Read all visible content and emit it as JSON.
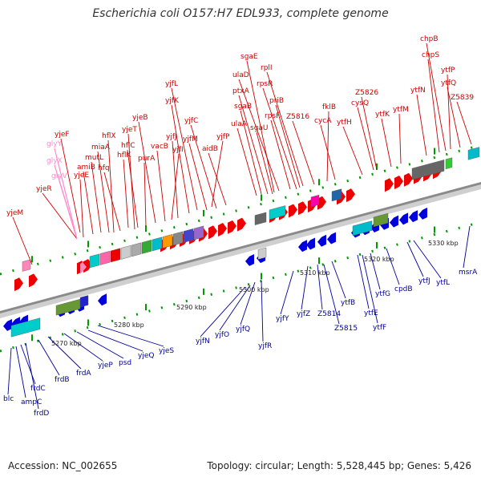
{
  "header": {
    "title": "Escherichia coli O157:H7 EDL933, complete genome"
  },
  "footer": {
    "accession": "Accession: NC_002655",
    "stats": "Topology: circular; Length: 5,528,445 bp; Genes: 5,426"
  },
  "colors": {
    "forward_gene": "#ee0000",
    "reverse_gene": "#0000dd",
    "pseudo_gene": "#ff88bb",
    "label_forward": "#cc0000",
    "label_reverse": "#000099",
    "label_pseudo": "#ff88cc",
    "backbone": "#888888",
    "ticks": "#009900"
  },
  "scale_labels": [
    "5270 kbp",
    "5280 kbp",
    "5290 kbp",
    "5300 kbp",
    "5310 kbp",
    "5320 kbp",
    "5330 kbp"
  ],
  "forward_labels": [
    "yjeM",
    "yjeR",
    "yjeF",
    "yjeE",
    "amiB",
    "mutL",
    "miaA",
    "hfq",
    "hflX",
    "hflK",
    "hflC",
    "yjeT",
    "purA",
    "yjeB",
    "vacB",
    "yjfI",
    "yjfJ",
    "yjfK",
    "yjfL",
    "yjfM",
    "yjfC",
    "aidB",
    "yjfP",
    "ulaA",
    "sgaB",
    "ptxA",
    "ulaD",
    "sgaE",
    "sgaU",
    "rpsF",
    "priB",
    "rpsR",
    "rplI",
    "Z5816",
    "fklB",
    "cycA",
    "ytfH",
    "cysQ",
    "Z5826",
    "ytfK",
    "ytfM",
    "ytfN",
    "chpS",
    "chpB",
    "ytfP",
    "ytfQ",
    "Z5839"
  ],
  "pseudo_labels": [
    "glyY",
    "glyX",
    "glyV"
  ],
  "reverse_labels": [
    "blc",
    "ampC",
    "frdC",
    "frdD",
    "frdB",
    "frdA",
    "yjeP",
    "psd",
    "yjeQ",
    "yjeS",
    "yjfN",
    "yjfO",
    "yjfQ",
    "yjfR",
    "yjfY",
    "yjfZ",
    "Z5814",
    "Z5815",
    "ytfB",
    "ytfE",
    "ytfF",
    "ytfG",
    "cpdB",
    "ytfJ",
    "ytfL",
    "msrA"
  ]
}
